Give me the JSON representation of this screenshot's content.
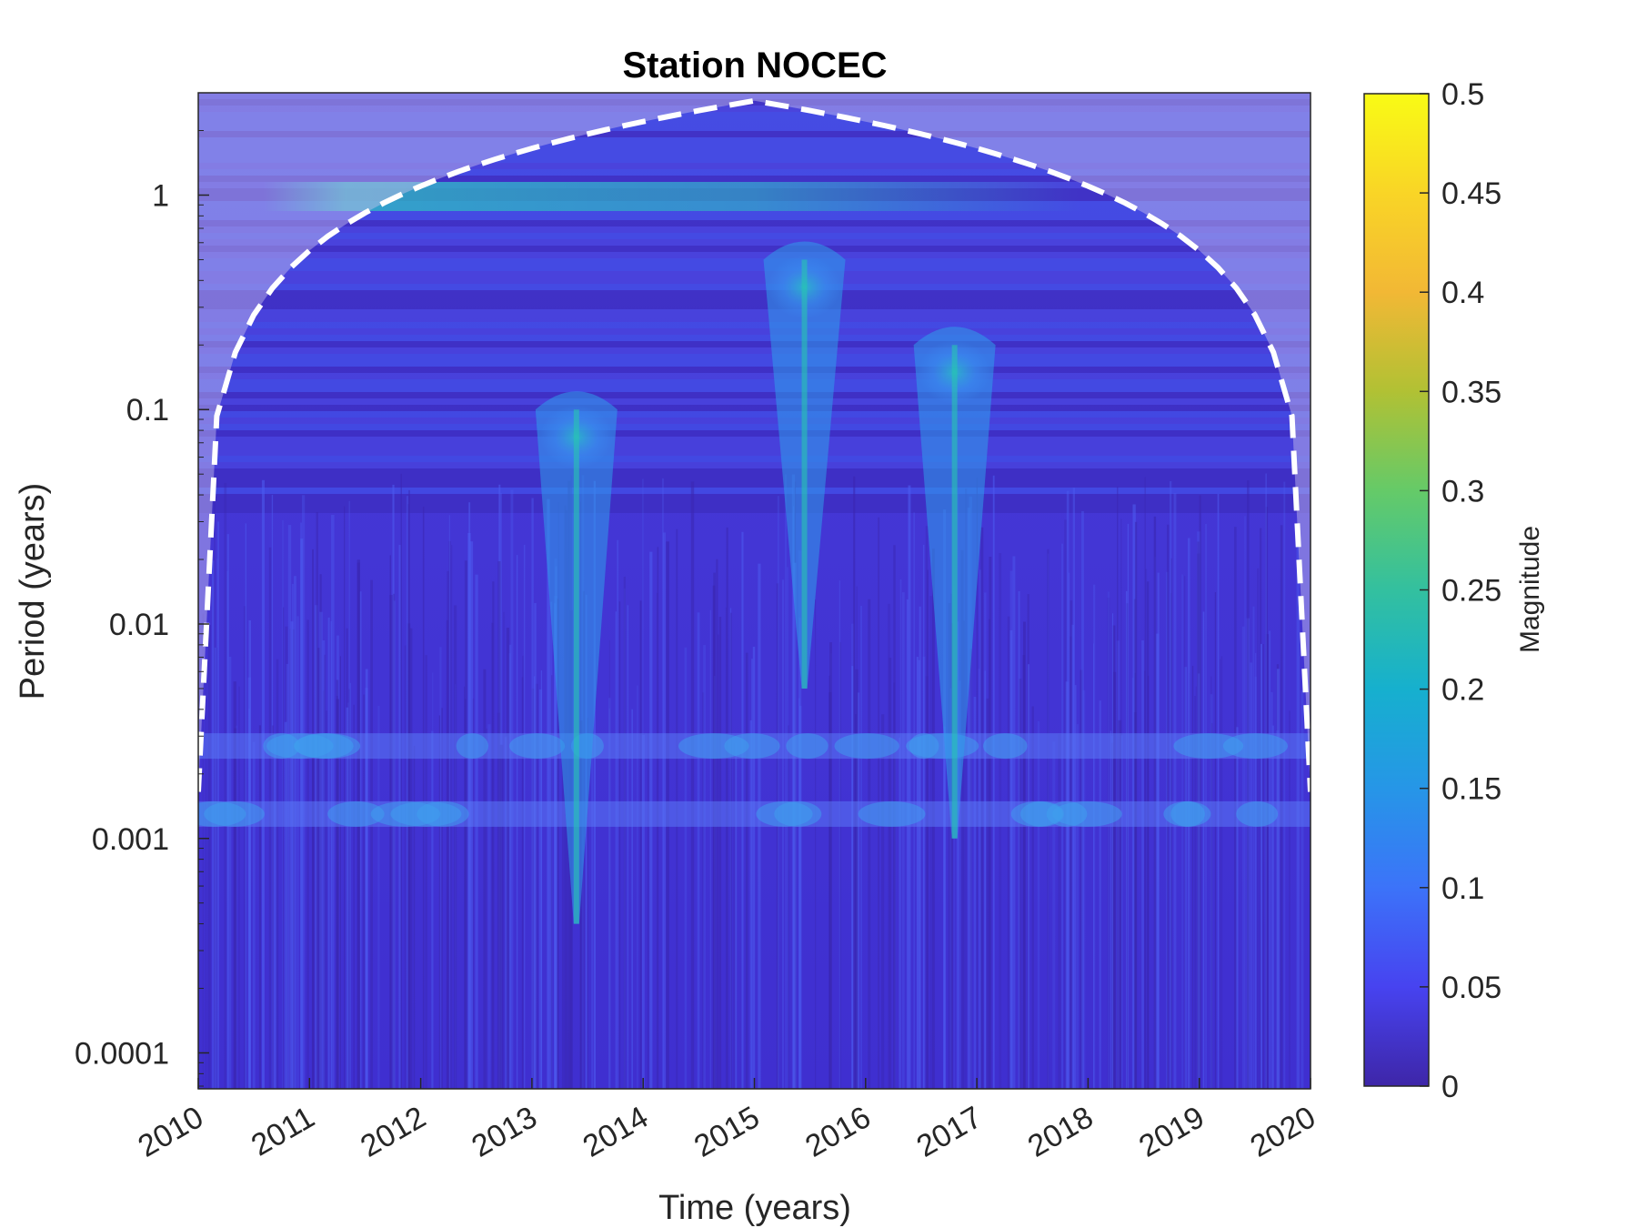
{
  "chart_data": {
    "type": "heatmap",
    "title": "Station NOCEC",
    "xlabel": "Time (years)",
    "ylabel": "Period (years)",
    "x_ticks": [
      "2010",
      "2011",
      "2012",
      "2013",
      "2014",
      "2015",
      "2016",
      "2017",
      "2018",
      "2019",
      "2020"
    ],
    "x_range": [
      2010,
      2020
    ],
    "y_scale": "log",
    "y_ticks": [
      {
        "value": 1,
        "label": "1"
      },
      {
        "value": 0.1,
        "label": "0.1"
      },
      {
        "value": 0.01,
        "label": "0.01"
      },
      {
        "value": 0.001,
        "label": "0.001"
      },
      {
        "value": 0.0001,
        "label": "0.0001"
      }
    ],
    "y_range": [
      6.8e-05,
      3.0
    ],
    "colorbar": {
      "label": "Magnitude",
      "range": [
        0,
        0.5
      ],
      "ticks": [
        "0",
        "0.05",
        "0.1",
        "0.15",
        "0.2",
        "0.25",
        "0.3",
        "0.35",
        "0.4",
        "0.45",
        "0.5"
      ],
      "colormap": [
        "#3e26a8",
        "#4743f0",
        "#3c73f9",
        "#2696e7",
        "#16b0ce",
        "#33c09f",
        "#65ca68",
        "#b1c134",
        "#f2b835",
        "#f9d526",
        "#f9fb15"
      ]
    },
    "cone_of_influence": {
      "style": "dashed",
      "color": "#ffffff"
    },
    "features": [
      {
        "time": 2013.4,
        "period_range": [
          0.0004,
          0.1
        ],
        "magnitude": 0.28
      },
      {
        "time": 2015.45,
        "period_range": [
          0.005,
          0.5
        ],
        "magnitude": 0.25
      },
      {
        "time": 2016.8,
        "period_range": [
          0.001,
          0.2
        ],
        "magnitude": 0.2
      },
      {
        "time_range": [
          2011,
          2014
        ],
        "period": 1.0,
        "magnitude": 0.22
      },
      {
        "time_range": [
          2010,
          2020
        ],
        "period": 0.0027,
        "magnitude": 0.12
      },
      {
        "time_range": [
          2010,
          2020
        ],
        "period": 0.0013,
        "magnitude": 0.1
      }
    ]
  }
}
